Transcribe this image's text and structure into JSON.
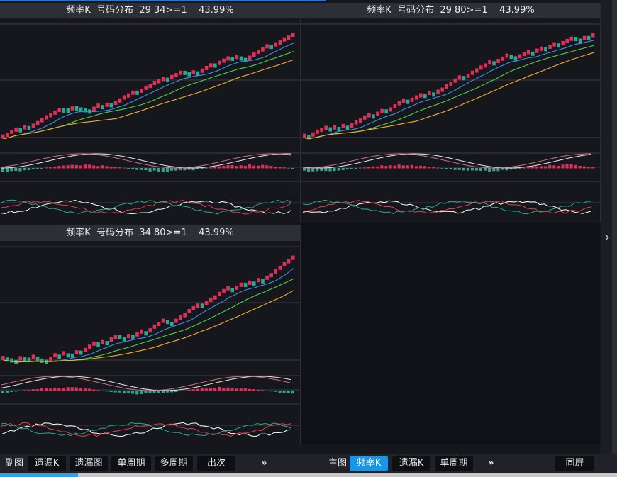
{
  "panels": [
    {
      "title": "频率K  号码分布  29 34>=1    43.99%"
    },
    {
      "title": "频率K  号码分布  29 80>=1    43.99%"
    },
    {
      "title": "频率K  号码分布  34 80>=1    43.99%"
    }
  ],
  "bottom_bar": {
    "left_label": "副图",
    "left_buttons": [
      "遗漏K",
      "遗漏图",
      "单周期",
      "多周期",
      "出次"
    ],
    "left_more": "»",
    "right_label": "主图",
    "right_buttons": [
      "频率K",
      "遗漏K",
      "单周期"
    ],
    "right_active": "频率K",
    "right_more": "»",
    "sync_button": "同屏"
  },
  "side_arrow": "›",
  "colors": {
    "up": "#e0305a",
    "down": "#2aa890",
    "ma_blue": "#3a8ee8",
    "ma_green": "#4cd04c",
    "ma_yellow": "#f0b030",
    "accent": "#1796e8"
  }
}
